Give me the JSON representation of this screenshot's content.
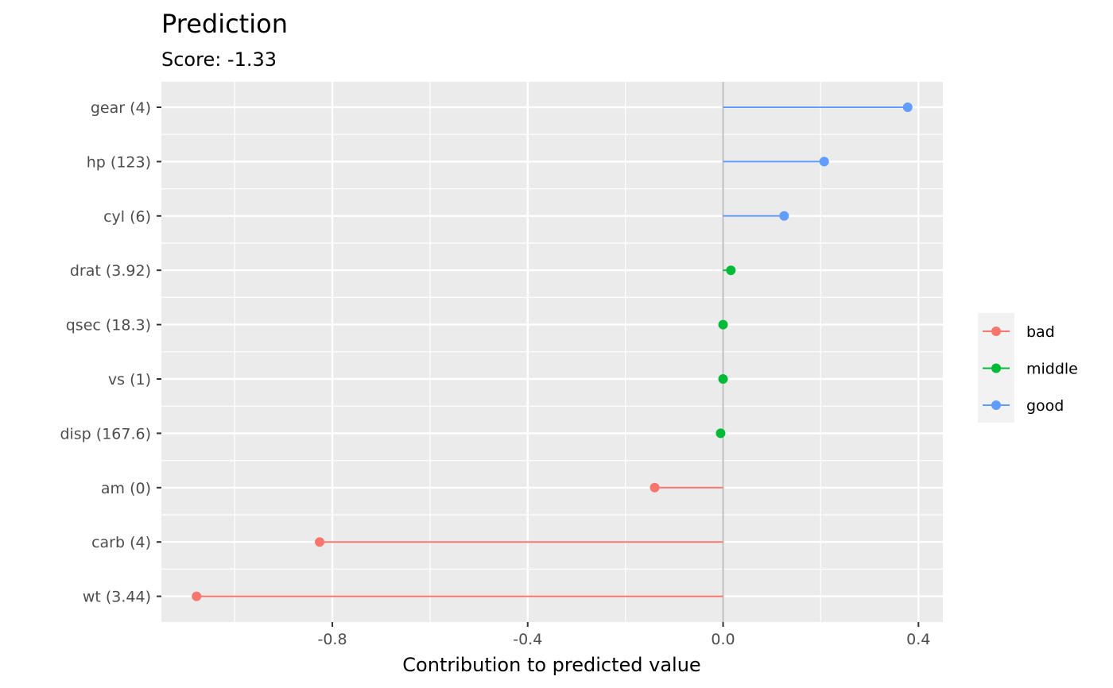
{
  "chart_data": {
    "type": "lollipop",
    "title": "Prediction",
    "subtitle": "Score: -1.33",
    "xlabel": "Contribution to predicted value",
    "ylabel": "",
    "xlim": [
      -1.15,
      0.45
    ],
    "x_ticks": [
      -0.8,
      -0.4,
      0.0,
      0.4
    ],
    "x_tick_labels": [
      "-0.8",
      "-0.4",
      "0.0",
      "0.4"
    ],
    "x_minor_ticks": [
      -1.0,
      -0.6,
      -0.2,
      0.2
    ],
    "grid": true,
    "legend_position": "right",
    "categories": [
      "gear (4)",
      "hp (123)",
      "cyl (6)",
      "drat (3.92)",
      "qsec (18.3)",
      "vs (1)",
      "disp (167.6)",
      "am (0)",
      "carb (4)",
      "wt (3.44)"
    ],
    "values": [
      0.378,
      0.207,
      0.125,
      0.016,
      0.0,
      0.0,
      -0.005,
      -0.14,
      -0.826,
      -1.078
    ],
    "groups": [
      "good",
      "good",
      "good",
      "middle",
      "middle",
      "middle",
      "middle",
      "bad",
      "bad",
      "bad"
    ],
    "legend": [
      {
        "name": "bad",
        "color": "#F8766D"
      },
      {
        "name": "middle",
        "color": "#00BA38"
      },
      {
        "name": "good",
        "color": "#619CFF"
      }
    ],
    "zero_line_color": "#bebebe",
    "panel_background": "#EBEBEB"
  }
}
